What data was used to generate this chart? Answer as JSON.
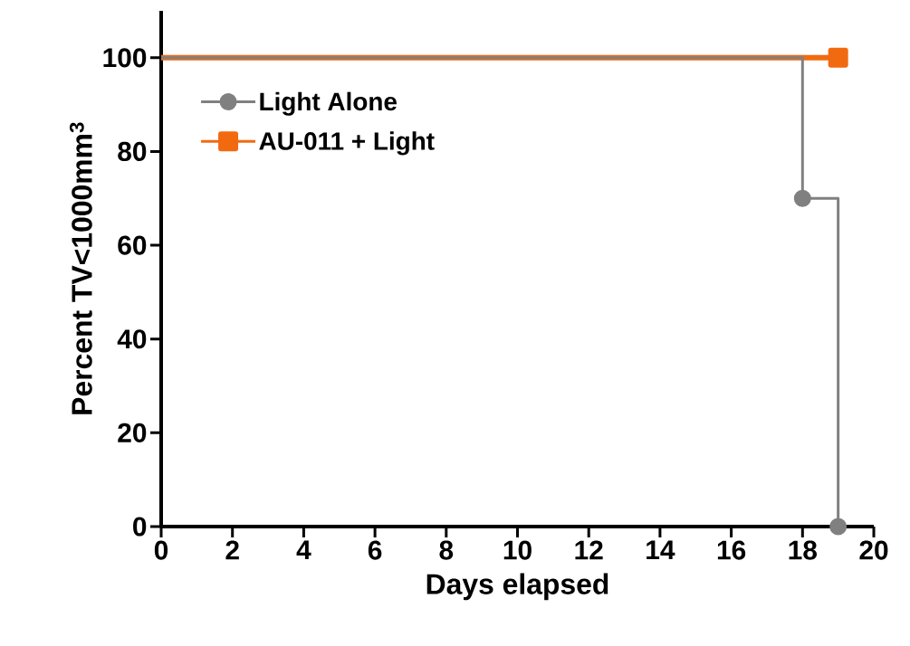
{
  "chart_data": {
    "type": "step",
    "xlabel": "Days elapsed",
    "ylabel": "Percent TV<1000mm$^{3}$",
    "xlim": [
      0,
      20
    ],
    "xticks": [
      0,
      2,
      4,
      6,
      8,
      10,
      12,
      14,
      16,
      18,
      20
    ],
    "ylim": [
      0,
      110
    ],
    "yticks": [
      0,
      20,
      40,
      60,
      80,
      100
    ],
    "grid": false,
    "legend": "top left",
    "line_style": "solid",
    "series": [
      {
        "name": "AU-011 + Light",
        "color": "#f26a10",
        "marker": "square",
        "x": [
          0,
          19
        ],
        "values": [
          100,
          100
        ]
      },
      {
        "name": "Light Alone",
        "color": "#808080",
        "marker": "circle",
        "x": [
          0,
          18,
          19
        ],
        "values": [
          100,
          70,
          0
        ]
      }
    ]
  }
}
